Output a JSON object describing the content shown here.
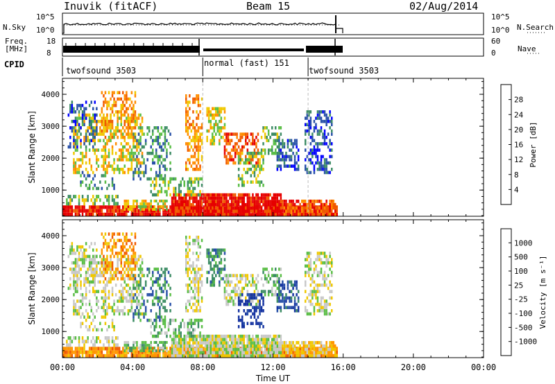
{
  "header": {
    "station": "Inuvik (fitACF)",
    "beam": "Beam 15",
    "date": "02/Aug/2014"
  },
  "strips": {
    "nsky_label": "N.Sky",
    "nsky_ticks": [
      "10^5",
      "10^0"
    ],
    "nsearch_label": "N.Search",
    "nsearch_ticks": [
      "10^5",
      "10^0"
    ],
    "freq_label_1": "Freq.",
    "freq_label_2": "[MHz]",
    "freq_ticks": [
      "18",
      "8"
    ],
    "nave_label": "Nave",
    "nave_ticks": [
      "60",
      "0"
    ],
    "cpid_label": "CPID",
    "cpid_segments": [
      {
        "label": "twofsound 3503",
        "start_hour": 0,
        "end_hour": 8
      },
      {
        "label": "normal (fast) 151",
        "start_hour": 8,
        "end_hour": 14
      },
      {
        "label": "twofsound 3503",
        "start_hour": 14,
        "end_hour": 15.7
      }
    ]
  },
  "colors": {
    "power": [
      "#0000ff",
      "#2850a8",
      "#3c8c64",
      "#5abe46",
      "#f0c800",
      "#ff8c00",
      "#f05a00",
      "#e60000"
    ],
    "velocity": [
      "#e60000",
      "#f05a00",
      "#ff9600",
      "#f0c800",
      "#c8c8c8",
      "#5abe46",
      "#3c8c64",
      "#2850a8",
      "#1432a0"
    ]
  },
  "chart_data": [
    {
      "type": "heatmap",
      "name": "power",
      "ylabel": "Slant Range [km]",
      "ylim": [
        180,
        4500
      ],
      "yticks": [
        "1000",
        "2000",
        "3000",
        "4000"
      ],
      "xlim_hours": [
        0,
        24
      ],
      "colorbar_label": "Power [dB]",
      "colorbar_ticks": [
        "4",
        "8",
        "12",
        "16",
        "20",
        "24",
        "28"
      ],
      "data_end_hour": 15.7
    },
    {
      "type": "heatmap",
      "name": "velocity",
      "ylabel": "Slant Range [km]",
      "ylim": [
        180,
        4500
      ],
      "yticks": [
        "1000",
        "2000",
        "3000",
        "4000"
      ],
      "xlim_hours": [
        0,
        24
      ],
      "colorbar_label": "Velocity [m s⁻¹]",
      "colorbar_ticks": [
        "1000",
        "500",
        "100",
        "25",
        "-25",
        "-100",
        "-500",
        "-1000"
      ],
      "data_end_hour": 15.7
    }
  ],
  "xaxis": {
    "ticks": [
      "00:00",
      "04:00",
      "08:00",
      "12:00",
      "16:00",
      "20:00",
      "00:00"
    ],
    "label": "Time UT"
  }
}
